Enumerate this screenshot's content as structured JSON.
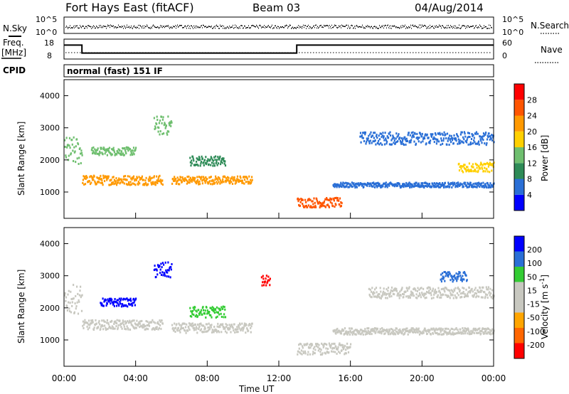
{
  "header": {
    "station": "Fort Hays East (fitACF)",
    "beam": "Beam 03",
    "date": "04/Aug/2014"
  },
  "noise_panel": {
    "left_label": "N.Sky",
    "right_label": "N.Search",
    "left_ticks": [
      "10^5",
      "10^0"
    ],
    "right_ticks": [
      "10^5",
      "10^0"
    ]
  },
  "freq_panel": {
    "left_label_line1": "Freq.",
    "left_label_line2": "[MHz]",
    "right_label": "Nave",
    "left_ticks": [
      "18",
      "8"
    ],
    "right_ticks": [
      "60",
      "0"
    ],
    "freq_steps": [
      {
        "from_hour": 0,
        "to_hour": 1,
        "mhz": 15
      },
      {
        "from_hour": 1,
        "to_hour": 13,
        "mhz": 11
      },
      {
        "from_hour": 13,
        "to_hour": 24,
        "mhz": 15
      }
    ],
    "nave_level": 15
  },
  "cpid": {
    "label": "CPID",
    "mode": "normal (fast) 151 IF"
  },
  "colors": {
    "power": [
      "#0000ff",
      "#2a6fd6",
      "#2e8b57",
      "#6fbf6f",
      "#ffd000",
      "#ff9900",
      "#ff5500",
      "#ff0000"
    ],
    "velocity": [
      "#ff0000",
      "#ff6600",
      "#ffa500",
      "#c8c8c0",
      "#c8c8c0",
      "#33cc33",
      "#2a6fd6",
      "#0000ff"
    ]
  },
  "chart_data": [
    {
      "type": "heatmap",
      "title": "Power",
      "ylabel": "Slant Range [km]",
      "yticks": [
        "1000",
        "2000",
        "3000",
        "4000"
      ],
      "ylim": [
        180,
        4500
      ],
      "xlim": [
        0,
        24
      ],
      "colorbar_label": "Power [dB]",
      "colorbar_ticks": [
        "4",
        "8",
        "12",
        "16",
        "20",
        "24",
        "28"
      ],
      "color_range": [
        0,
        32
      ],
      "bands": [
        {
          "start_hour": 0.0,
          "end_hour": 1.0,
          "center_km": 2300,
          "width_km": 900,
          "value": 14
        },
        {
          "start_hour": 1.0,
          "end_hour": 5.5,
          "center_km": 1400,
          "width_km": 300,
          "value": 20
        },
        {
          "start_hour": 1.5,
          "end_hour": 4.0,
          "center_km": 2300,
          "width_km": 250,
          "value": 14
        },
        {
          "start_hour": 5.0,
          "end_hour": 6.0,
          "center_km": 3100,
          "width_km": 600,
          "value": 14
        },
        {
          "start_hour": 6.0,
          "end_hour": 10.5,
          "center_km": 1400,
          "width_km": 250,
          "value": 22
        },
        {
          "start_hour": 7.0,
          "end_hour": 9.0,
          "center_km": 2000,
          "width_km": 300,
          "value": 10
        },
        {
          "start_hour": 13.0,
          "end_hour": 15.5,
          "center_km": 700,
          "width_km": 300,
          "value": 26
        },
        {
          "start_hour": 15.0,
          "end_hour": 24.0,
          "center_km": 1250,
          "width_km": 150,
          "value": 4
        },
        {
          "start_hour": 16.5,
          "end_hour": 24.0,
          "center_km": 2700,
          "width_km": 400,
          "value": 7
        },
        {
          "start_hour": 22.0,
          "end_hour": 24.0,
          "center_km": 1800,
          "width_km": 300,
          "value": 16
        }
      ]
    },
    {
      "type": "heatmap",
      "title": "Velocity",
      "ylabel": "Slant Range [km]",
      "yticks": [
        "1000",
        "2000",
        "3000",
        "4000"
      ],
      "ylim": [
        180,
        4500
      ],
      "xlim": [
        0,
        24
      ],
      "xticks": [
        "00:00",
        "04:00",
        "08:00",
        "12:00",
        "16:00",
        "20:00",
        "00:00"
      ],
      "xlabel": "Time UT",
      "colorbar_label": "Velocity [m s^-1]",
      "colorbar_ticks": [
        "-200",
        "-100",
        "-50",
        "-15",
        "15",
        "50",
        "100",
        "200"
      ],
      "bands": [
        {
          "start_hour": 0.0,
          "end_hour": 1.0,
          "center_km": 2300,
          "width_km": 900,
          "value": 0
        },
        {
          "start_hour": 1.0,
          "end_hour": 5.5,
          "center_km": 1500,
          "width_km": 300,
          "value": 0
        },
        {
          "start_hour": 2.0,
          "end_hour": 4.0,
          "center_km": 2200,
          "width_km": 250,
          "value": 220
        },
        {
          "start_hour": 5.0,
          "end_hour": 6.0,
          "center_km": 3200,
          "width_km": 500,
          "value": 200
        },
        {
          "start_hour": 6.0,
          "end_hour": 10.5,
          "center_km": 1400,
          "width_km": 300,
          "value": 40
        },
        {
          "start_hour": 7.0,
          "end_hour": 9.0,
          "center_km": 1900,
          "width_km": 350,
          "value": 70
        },
        {
          "start_hour": 11.0,
          "end_hour": 11.5,
          "center_km": 2900,
          "width_km": 500,
          "value": -200
        },
        {
          "start_hour": 13.0,
          "end_hour": 16.0,
          "center_km": 750,
          "width_km": 350,
          "value": 0
        },
        {
          "start_hour": 15.0,
          "end_hour": 24.0,
          "center_km": 1300,
          "width_km": 200,
          "value": 0
        },
        {
          "start_hour": 17.0,
          "end_hour": 24.0,
          "center_km": 2500,
          "width_km": 350,
          "value": 0
        },
        {
          "start_hour": 21.0,
          "end_hour": 22.5,
          "center_km": 3000,
          "width_km": 300,
          "value": 120
        }
      ]
    }
  ]
}
